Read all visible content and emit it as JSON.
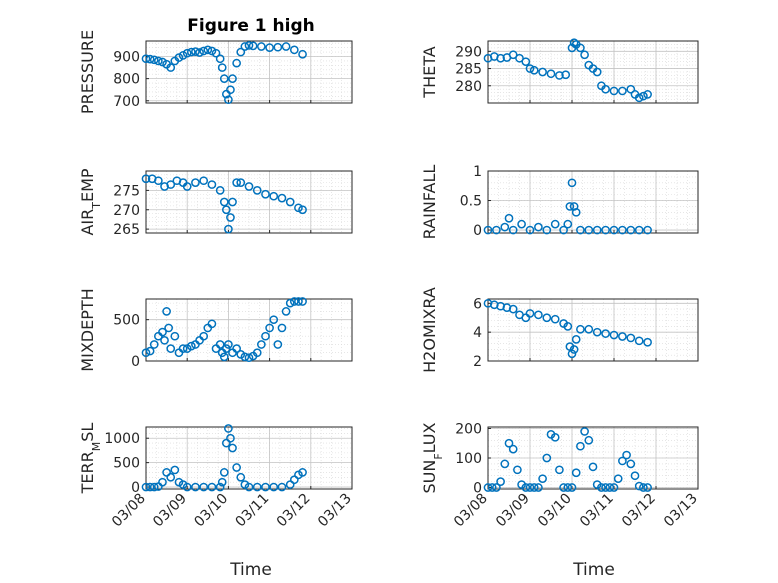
{
  "figure_title": "Figure 1 high",
  "marker_color": "#0072BD",
  "x_axis": {
    "label": "Time",
    "tick_labels": [
      "03/08",
      "03/09",
      "03/10",
      "03/11",
      "03/12",
      "03/13"
    ],
    "range_days": [
      0,
      5
    ]
  },
  "chart_data": [
    {
      "type": "scatter",
      "title": "Figure 1 high",
      "ylabel": "PRESSURE",
      "ylim": [
        690,
        970
      ],
      "yticks": [
        700,
        800,
        900
      ],
      "ytick_labels": [
        "700",
        "800",
        "900"
      ],
      "x": [
        0,
        0.1,
        0.2,
        0.3,
        0.4,
        0.5,
        0.6,
        0.7,
        0.8,
        0.9,
        1.0,
        1.1,
        1.2,
        1.3,
        1.4,
        1.5,
        1.6,
        1.7,
        1.8,
        1.85,
        1.9,
        1.95,
        2.0,
        2.05,
        2.1,
        2.2,
        2.3,
        2.4,
        2.5,
        2.6,
        2.8,
        3.0,
        3.2,
        3.4,
        3.6,
        3.8
      ],
      "y": [
        890,
        888,
        885,
        880,
        875,
        865,
        850,
        880,
        895,
        905,
        915,
        920,
        922,
        918,
        925,
        930,
        925,
        915,
        890,
        850,
        800,
        730,
        705,
        750,
        800,
        870,
        920,
        945,
        950,
        948,
        945,
        940,
        942,
        945,
        930,
        910
      ]
    },
    {
      "type": "scatter",
      "title": "",
      "ylabel": "THETA",
      "ylim": [
        275,
        293
      ],
      "yticks": [
        280,
        285,
        290
      ],
      "ytick_labels": [
        "280",
        "285",
        "290"
      ],
      "x": [
        0,
        0.15,
        0.3,
        0.45,
        0.6,
        0.75,
        0.9,
        1.0,
        1.1,
        1.3,
        1.5,
        1.7,
        1.85,
        2.0,
        2.05,
        2.1,
        2.2,
        2.3,
        2.4,
        2.5,
        2.6,
        2.7,
        2.8,
        3.0,
        3.2,
        3.4,
        3.5,
        3.6,
        3.7,
        3.8
      ],
      "y": [
        288,
        288.5,
        288,
        288.2,
        289,
        288,
        287,
        285,
        284.5,
        284,
        283.5,
        283,
        283.2,
        291,
        292.5,
        292,
        291,
        289,
        286,
        285,
        284,
        280,
        279,
        278.5,
        278.5,
        279,
        277.5,
        276.5,
        277,
        277.5
      ]
    },
    {
      "type": "scatter",
      "title": "",
      "ylabel": "AIR_TEMP",
      "ylim": [
        264,
        280
      ],
      "yticks": [
        265,
        270,
        275
      ],
      "ytick_labels": [
        "265",
        "270",
        "275"
      ],
      "x": [
        0,
        0.15,
        0.3,
        0.45,
        0.6,
        0.75,
        0.9,
        1.0,
        1.2,
        1.4,
        1.6,
        1.8,
        1.9,
        1.95,
        2.0,
        2.05,
        2.1,
        2.2,
        2.3,
        2.5,
        2.7,
        2.9,
        3.1,
        3.3,
        3.5,
        3.7,
        3.8
      ],
      "y": [
        278,
        278,
        277.5,
        276,
        276.5,
        277.5,
        277,
        276,
        277,
        277.5,
        276.5,
        275,
        272,
        270,
        265,
        268,
        272,
        277,
        277,
        276,
        275,
        274,
        273.5,
        273,
        272,
        270.5,
        270
      ]
    },
    {
      "type": "scatter",
      "title": "",
      "ylabel": "RAINFALL",
      "ylim": [
        -0.05,
        1
      ],
      "yticks": [
        0,
        0.5,
        1
      ],
      "ytick_labels": [
        "0",
        "0.5",
        "1"
      ],
      "x": [
        0,
        0.2,
        0.4,
        0.5,
        0.6,
        0.8,
        1.0,
        1.2,
        1.4,
        1.6,
        1.8,
        1.9,
        1.95,
        2.0,
        2.05,
        2.1,
        2.2,
        2.4,
        2.6,
        2.8,
        3.0,
        3.2,
        3.4,
        3.6,
        3.8
      ],
      "y": [
        0,
        0,
        0.05,
        0.2,
        0,
        0.1,
        0,
        0.05,
        0,
        0.1,
        0,
        0.1,
        0.4,
        0.8,
        0.4,
        0.3,
        0,
        0,
        0,
        0,
        0,
        0,
        0,
        0,
        0
      ]
    },
    {
      "type": "scatter",
      "title": "",
      "ylabel": "MIXDEPTH",
      "ylim": [
        0,
        750
      ],
      "yticks": [
        0,
        500
      ],
      "ytick_labels": [
        "0",
        "500"
      ],
      "x": [
        0,
        0.1,
        0.2,
        0.3,
        0.4,
        0.45,
        0.5,
        0.55,
        0.6,
        0.7,
        0.8,
        0.9,
        1.0,
        1.1,
        1.2,
        1.3,
        1.4,
        1.5,
        1.6,
        1.7,
        1.8,
        1.85,
        1.9,
        1.95,
        2.0,
        2.1,
        2.2,
        2.3,
        2.4,
        2.5,
        2.6,
        2.7,
        2.8,
        2.9,
        3.0,
        3.1,
        3.2,
        3.3,
        3.4,
        3.5,
        3.6,
        3.7,
        3.8
      ],
      "y": [
        100,
        120,
        200,
        300,
        350,
        250,
        600,
        400,
        150,
        300,
        100,
        150,
        150,
        180,
        200,
        250,
        300,
        400,
        450,
        150,
        200,
        100,
        50,
        150,
        200,
        100,
        150,
        80,
        50,
        40,
        60,
        100,
        200,
        300,
        400,
        500,
        200,
        400,
        600,
        700,
        720,
        720,
        720
      ]
    },
    {
      "type": "scatter",
      "title": "",
      "ylabel": "H2OMIXRA",
      "ylim": [
        2,
        6.3
      ],
      "yticks": [
        2,
        4,
        6
      ],
      "ytick_labels": [
        "2",
        "4",
        "6"
      ],
      "x": [
        0,
        0.15,
        0.3,
        0.45,
        0.6,
        0.75,
        0.9,
        1.0,
        1.2,
        1.4,
        1.6,
        1.8,
        1.9,
        1.95,
        2.0,
        2.05,
        2.1,
        2.2,
        2.4,
        2.6,
        2.8,
        3.0,
        3.2,
        3.4,
        3.6,
        3.8
      ],
      "y": [
        6,
        5.9,
        5.8,
        5.7,
        5.6,
        5.2,
        5,
        5.3,
        5.2,
        5,
        4.9,
        4.6,
        4.4,
        3,
        2.5,
        2.8,
        3.5,
        4.2,
        4.2,
        4.0,
        3.9,
        3.8,
        3.7,
        3.6,
        3.4,
        3.3
      ]
    },
    {
      "type": "scatter",
      "title": "",
      "ylabel": "TERR_MSL",
      "ylim": [
        -40,
        1230
      ],
      "yticks": [
        0,
        500,
        1000
      ],
      "ytick_labels": [
        "0",
        "500",
        "1000"
      ],
      "x": [
        0,
        0.1,
        0.2,
        0.3,
        0.4,
        0.5,
        0.6,
        0.7,
        0.8,
        0.9,
        1.0,
        1.2,
        1.4,
        1.6,
        1.8,
        1.85,
        1.9,
        1.95,
        2.0,
        2.05,
        2.1,
        2.2,
        2.3,
        2.4,
        2.5,
        2.7,
        2.9,
        3.1,
        3.3,
        3.5,
        3.6,
        3.7,
        3.8
      ],
      "y": [
        0,
        0,
        0,
        10,
        100,
        300,
        200,
        350,
        100,
        50,
        0,
        0,
        0,
        0,
        0,
        100,
        300,
        900,
        1200,
        1000,
        800,
        400,
        200,
        50,
        0,
        0,
        0,
        0,
        0,
        50,
        150,
        250,
        300
      ]
    },
    {
      "type": "scatter",
      "title": "",
      "ylabel": "SUN_FLUX",
      "ylim": [
        -5,
        205
      ],
      "yticks": [
        0,
        100,
        200
      ],
      "ytick_labels": [
        "0",
        "100",
        "200"
      ],
      "x": [
        0,
        0.1,
        0.2,
        0.3,
        0.4,
        0.5,
        0.6,
        0.7,
        0.8,
        0.9,
        1.0,
        1.1,
        1.2,
        1.3,
        1.4,
        1.5,
        1.6,
        1.7,
        1.8,
        1.9,
        2.0,
        2.1,
        2.2,
        2.3,
        2.4,
        2.5,
        2.6,
        2.7,
        2.8,
        2.9,
        3.0,
        3.1,
        3.2,
        3.3,
        3.4,
        3.5,
        3.6,
        3.7,
        3.8
      ],
      "y": [
        0,
        0,
        0,
        20,
        80,
        150,
        130,
        60,
        10,
        0,
        0,
        0,
        0,
        30,
        100,
        180,
        170,
        60,
        0,
        0,
        0,
        50,
        140,
        190,
        160,
        70,
        10,
        0,
        0,
        0,
        0,
        30,
        90,
        110,
        80,
        40,
        5,
        0,
        0
      ]
    }
  ]
}
